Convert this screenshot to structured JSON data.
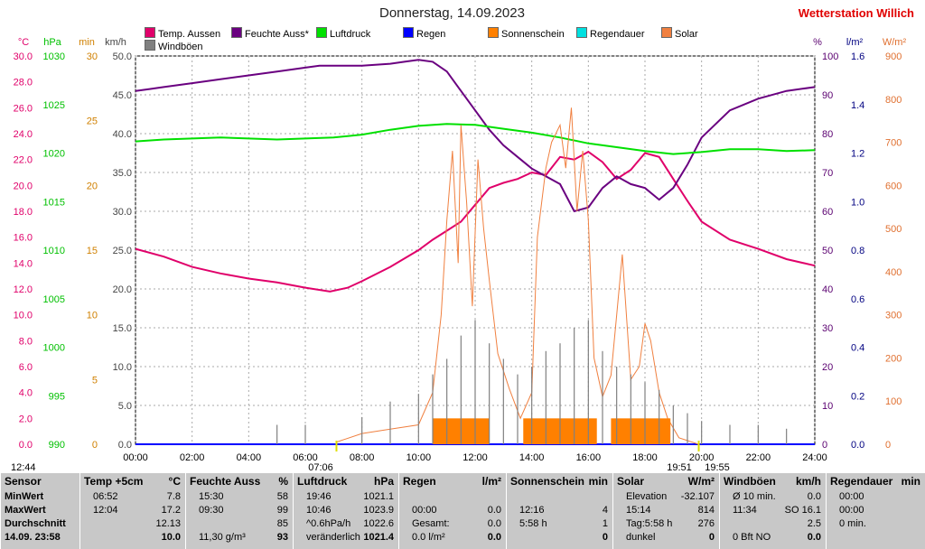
{
  "title": "Donnerstag, 14.09.2023",
  "station": "Wetterstation Willich",
  "legend": [
    {
      "label": "Temp. Aussen",
      "color": "#e0006a"
    },
    {
      "label": "Feuchte Auss*",
      "color": "#6a0080"
    },
    {
      "label": "Luftdruck",
      "color": "#00e000"
    },
    {
      "label": "Regen",
      "color": "#0000ff"
    },
    {
      "label": "Sonnenschein",
      "color": "#ff8000"
    },
    {
      "label": "Regendauer",
      "color": "#00e0e0"
    },
    {
      "label": "Solar",
      "color": "#f08040"
    },
    {
      "label": "Windböen",
      "color": "#808080"
    }
  ],
  "axes_units": {
    "temp": "°C",
    "pressure": "hPa",
    "minutes": "min",
    "wind": "km/h",
    "humidity": "%",
    "rain": "l/m²",
    "solar": "W/m²"
  },
  "time_markers": {
    "sunrise": "07:06",
    "sunset_a": "19:51",
    "sunset_b": "19:55",
    "left": "12:44"
  },
  "chart_data": {
    "type": "line",
    "x_ticks": [
      "00:00",
      "02:00",
      "04:00",
      "06:00",
      "08:00",
      "10:00",
      "12:00",
      "14:00",
      "16:00",
      "18:00",
      "20:00",
      "22:00",
      "24:00"
    ],
    "xlim": [
      0,
      24
    ],
    "temp_ticks": [
      "30.0",
      "28.0",
      "26.0",
      "24.0",
      "22.0",
      "20.0",
      "18.0",
      "16.0",
      "14.0",
      "12.0",
      "10.0",
      "8.0",
      "6.0",
      "4.0",
      "2.0",
      "0.0"
    ],
    "pressure_ticks": [
      "1030",
      "1025",
      "1020",
      "1015",
      "1010",
      "1005",
      "1000",
      "995",
      "990"
    ],
    "minutes_ticks": [
      "30",
      "25",
      "20",
      "15",
      "10",
      "5",
      "0"
    ],
    "wind_ticks": [
      "50.0",
      "45.0",
      "40.0",
      "35.0",
      "30.0",
      "25.0",
      "20.0",
      "15.0",
      "10.0",
      "5.0",
      "0.0"
    ],
    "humidity_ticks": [
      "100",
      "90",
      "80",
      "70",
      "60",
      "50",
      "40",
      "30",
      "20",
      "10",
      "0"
    ],
    "rain_ticks": [
      "1.6",
      "1.4",
      "1.2",
      "1.0",
      "0.8",
      "0.6",
      "0.4",
      "0.2",
      "0.0"
    ],
    "solar_ticks": [
      "900",
      "800",
      "700",
      "600",
      "500",
      "400",
      "300",
      "200",
      "100",
      "0"
    ],
    "series": [
      {
        "name": "Temp. Aussen",
        "axis": "temp",
        "ylim": [
          0,
          30
        ],
        "color": "#e0006a",
        "x": [
          0,
          1,
          2,
          3,
          4,
          5,
          6,
          6.87,
          7.5,
          8,
          9,
          10,
          10.5,
          11,
          11.5,
          12,
          12.5,
          13,
          13.5,
          14,
          14.5,
          15,
          15.5,
          16,
          16.5,
          17,
          17.5,
          18,
          18.5,
          19,
          19.5,
          20,
          21,
          22,
          23,
          24
        ],
        "y": [
          15.1,
          14.5,
          13.7,
          13.2,
          12.8,
          12.5,
          12.1,
          11.8,
          12.1,
          12.6,
          13.7,
          15.0,
          15.8,
          16.5,
          17.2,
          18.5,
          19.8,
          20.2,
          20.5,
          21.0,
          20.8,
          22.2,
          22.0,
          22.6,
          21.8,
          20.5,
          21.2,
          22.5,
          22.2,
          20.5,
          18.8,
          17.2,
          15.8,
          15.1,
          14.3,
          13.8
        ]
      },
      {
        "name": "Feuchte Auss*",
        "axis": "humidity",
        "ylim": [
          0,
          100
        ],
        "color": "#6a0080",
        "x": [
          0,
          0.5,
          1,
          2,
          3,
          4,
          5,
          6,
          6.5,
          7,
          8,
          9,
          9.5,
          10,
          10.5,
          11,
          11.5,
          12,
          12.5,
          13,
          13.5,
          14,
          14.5,
          15,
          15.5,
          16,
          16.5,
          17,
          17.5,
          18,
          18.5,
          19,
          19.5,
          20,
          21,
          22,
          23,
          24
        ],
        "y": [
          91,
          91.5,
          92,
          93,
          94,
          95,
          96,
          97,
          97.5,
          97.5,
          97.5,
          98,
          98.5,
          99,
          98.5,
          96,
          91,
          86,
          81,
          77,
          74,
          71,
          69,
          67,
          60,
          61,
          66,
          69,
          67,
          66,
          63,
          66,
          72,
          79,
          86,
          89,
          91,
          92
        ]
      },
      {
        "name": "Luftdruck",
        "axis": "pressure",
        "ylim": [
          990,
          1030
        ],
        "color": "#00e000",
        "x": [
          0,
          1,
          2,
          3,
          4,
          5,
          6,
          7,
          8,
          9,
          10,
          11,
          12,
          13,
          14,
          15,
          16,
          17,
          18,
          19,
          20,
          21,
          22,
          23,
          24
        ],
        "y": [
          1021.2,
          1021.4,
          1021.5,
          1021.6,
          1021.5,
          1021.4,
          1021.5,
          1021.6,
          1021.9,
          1022.4,
          1022.8,
          1023.0,
          1022.9,
          1022.5,
          1022.1,
          1021.6,
          1021.0,
          1020.6,
          1020.2,
          1019.9,
          1020.1,
          1020.4,
          1020.4,
          1020.2,
          1020.3
        ]
      },
      {
        "name": "Regen",
        "axis": "rain",
        "ylim": [
          0,
          1.6
        ],
        "color": "#0000ff",
        "x": [
          0,
          24
        ],
        "y": [
          0,
          0
        ]
      },
      {
        "name": "Solar",
        "axis": "solar",
        "ylim": [
          0,
          900
        ],
        "color": "#f08040",
        "x": [
          7.1,
          8,
          9,
          10,
          10.5,
          10.8,
          11,
          11.2,
          11.4,
          11.5,
          11.7,
          11.9,
          12.1,
          12.3,
          12.5,
          12.8,
          13.2,
          13.6,
          14.0,
          14.2,
          14.5,
          14.7,
          15.0,
          15.2,
          15.4,
          15.6,
          15.8,
          16.0,
          16.2,
          16.5,
          16.8,
          17.0,
          17.2,
          17.5,
          17.8,
          18.0,
          18.2,
          18.5,
          18.8,
          19.2,
          19.9
        ],
        "y": [
          5,
          25,
          35,
          45,
          120,
          300,
          520,
          680,
          420,
          740,
          560,
          320,
          660,
          500,
          380,
          210,
          130,
          60,
          120,
          480,
          640,
          700,
          740,
          640,
          780,
          540,
          680,
          520,
          200,
          110,
          160,
          300,
          440,
          150,
          180,
          280,
          240,
          120,
          60,
          15,
          0
        ]
      },
      {
        "name": "Sonnenschein",
        "axis": "minutes",
        "ylim": [
          0,
          30
        ],
        "color": "#ff8000",
        "x": [
          10.5,
          11.0,
          11.5,
          12.0,
          12.5,
          13.7,
          14.0,
          14.5,
          15.0,
          15.5,
          16.0,
          17.0,
          17.5,
          18.0,
          18.5
        ],
        "y": [
          2,
          2,
          2,
          2,
          2,
          2,
          2,
          2,
          2,
          2,
          2,
          2,
          2,
          2,
          2
        ],
        "bar_x": [
          10.5,
          13.7,
          16.8
        ],
        "bar_w": [
          2.0,
          2.6,
          2.1
        ],
        "bar_y": [
          2,
          2,
          2
        ]
      },
      {
        "name": "Windböen",
        "axis": "wind",
        "ylim": [
          0,
          50
        ],
        "color": "#808080",
        "x": [
          5,
          6,
          8,
          9,
          10,
          10.5,
          11,
          11.5,
          12,
          12.5,
          13,
          13.5,
          14,
          14.5,
          15,
          15.5,
          16,
          16.5,
          17,
          17.5,
          18,
          18.5,
          19,
          19.5,
          20,
          21,
          22,
          23
        ],
        "y": [
          2.5,
          2.5,
          3.5,
          5.5,
          6.5,
          9,
          11,
          14,
          16,
          13,
          11,
          9,
          10,
          12,
          13,
          15,
          16,
          12,
          10,
          9,
          8,
          7,
          5,
          4,
          3,
          2.5,
          2.5,
          2
        ]
      }
    ]
  },
  "table": [
    {
      "title": "Sensor",
      "unit": "",
      "rows": [
        [
          "MinWert",
          ""
        ],
        [
          "MaxWert",
          ""
        ],
        [
          "Durchschnitt",
          ""
        ],
        [
          "14.09. 23:58",
          ""
        ]
      ]
    },
    {
      "title": "Temp +5cm",
      "unit": "°C",
      "rows": [
        [
          "06:52",
          "7.8"
        ],
        [
          "12:04",
          "17.2"
        ],
        [
          "",
          "12.13"
        ],
        [
          "",
          "10.0"
        ]
      ]
    },
    {
      "title": "Feuchte Auss",
      "unit": "%",
      "rows": [
        [
          "15:30",
          "58"
        ],
        [
          "09:30",
          "99"
        ],
        [
          "",
          "85"
        ],
        [
          "11,30 g/m³",
          "93"
        ]
      ]
    },
    {
      "title": "Luftdruck",
      "unit": "hPa",
      "rows": [
        [
          "19:46",
          "1021.1"
        ],
        [
          "10:46",
          "1023.9"
        ],
        [
          "^0.6hPa/h",
          "1022.6"
        ],
        [
          "veränderlich",
          "1021.4"
        ]
      ]
    },
    {
      "title": "Regen",
      "unit": "l/m²",
      "rows": [
        [
          "",
          ""
        ],
        [
          "00:00",
          "0.0"
        ],
        [
          "Gesamt:",
          "0.0"
        ],
        [
          "0.0 l/m²",
          "0.0"
        ]
      ]
    },
    {
      "title": "Sonnenschein",
      "unit": "min",
      "rows": [
        [
          "",
          ""
        ],
        [
          "12:16",
          "4"
        ],
        [
          "5:58 h",
          "1"
        ],
        [
          "",
          "0"
        ]
      ]
    },
    {
      "title": "Solar",
      "unit": "W/m²",
      "rows": [
        [
          "Elevation",
          "-32.107"
        ],
        [
          "15:14",
          "814"
        ],
        [
          "Tag:5:58 h",
          "276"
        ],
        [
          "dunkel",
          "0"
        ]
      ]
    },
    {
      "title": "Windböen",
      "unit": "km/h",
      "rows": [
        [
          "Ø 10 min.",
          "0.0"
        ],
        [
          "11:34",
          "SO 16.1"
        ],
        [
          "",
          "2.5"
        ],
        [
          "0 Bft NO",
          "0.0"
        ]
      ]
    },
    {
      "title": "Regendauer",
      "unit": "min",
      "rows": [
        [
          "00:00",
          ""
        ],
        [
          "00:00",
          ""
        ],
        [
          "0 min.",
          ""
        ],
        [
          "",
          ""
        ]
      ]
    }
  ]
}
